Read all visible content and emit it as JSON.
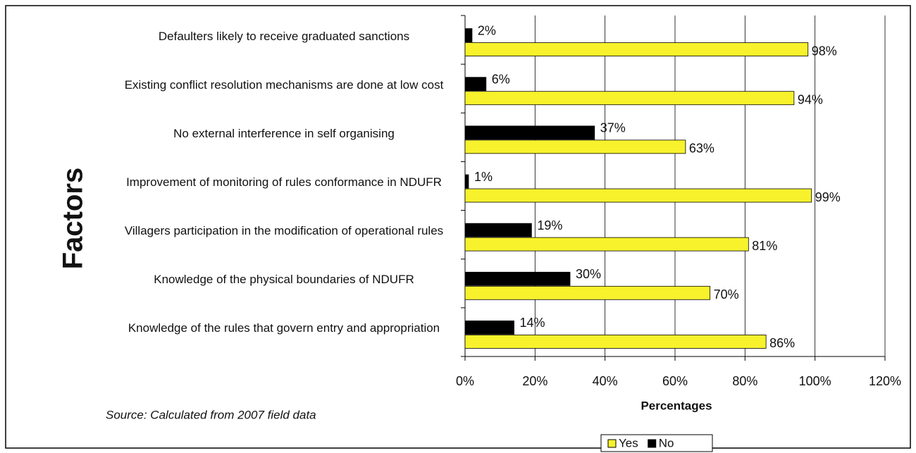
{
  "chart_data": {
    "type": "hbar",
    "xlabel": "Percentages",
    "ylabel": "Factors",
    "source": "Source: Calculated from 2007 field data",
    "categories": [
      "Defaulters likely to receive graduated sanctions",
      "Existing conflict resolution mechanisms are done at low cost",
      "No external interference in self organising",
      "Improvement of monitoring of rules conformance in NDUFR",
      "Villagers  participation in the modification of operational rules",
      "Knowledge of the physical boundaries of NDUFR",
      "Knowledge of the rules that govern entry and appropriation"
    ],
    "series": [
      {
        "name": "Yes",
        "color": "#f7f22c",
        "values": [
          98,
          94,
          63,
          99,
          81,
          70,
          86
        ],
        "value_labels": [
          "98%",
          "94%",
          "63%",
          "99%",
          "81%",
          "70%",
          "86%"
        ]
      },
      {
        "name": "No",
        "color": "#000000",
        "values": [
          2,
          6,
          37,
          1,
          19,
          30,
          14
        ],
        "value_labels": [
          "2%",
          "6%",
          "37%",
          "1%",
          "19%",
          "30%",
          "14%"
        ]
      }
    ],
    "xlim": [
      0,
      120
    ],
    "xticks": [
      {
        "value": 0,
        "label": "0%"
      },
      {
        "value": 20,
        "label": "20%"
      },
      {
        "value": 40,
        "label": "40%"
      },
      {
        "value": 60,
        "label": "60%"
      },
      {
        "value": 80,
        "label": "80%"
      },
      {
        "value": 100,
        "label": "100%"
      },
      {
        "value": 120,
        "label": "120%"
      }
    ],
    "grid": true,
    "legend": "bottom"
  }
}
